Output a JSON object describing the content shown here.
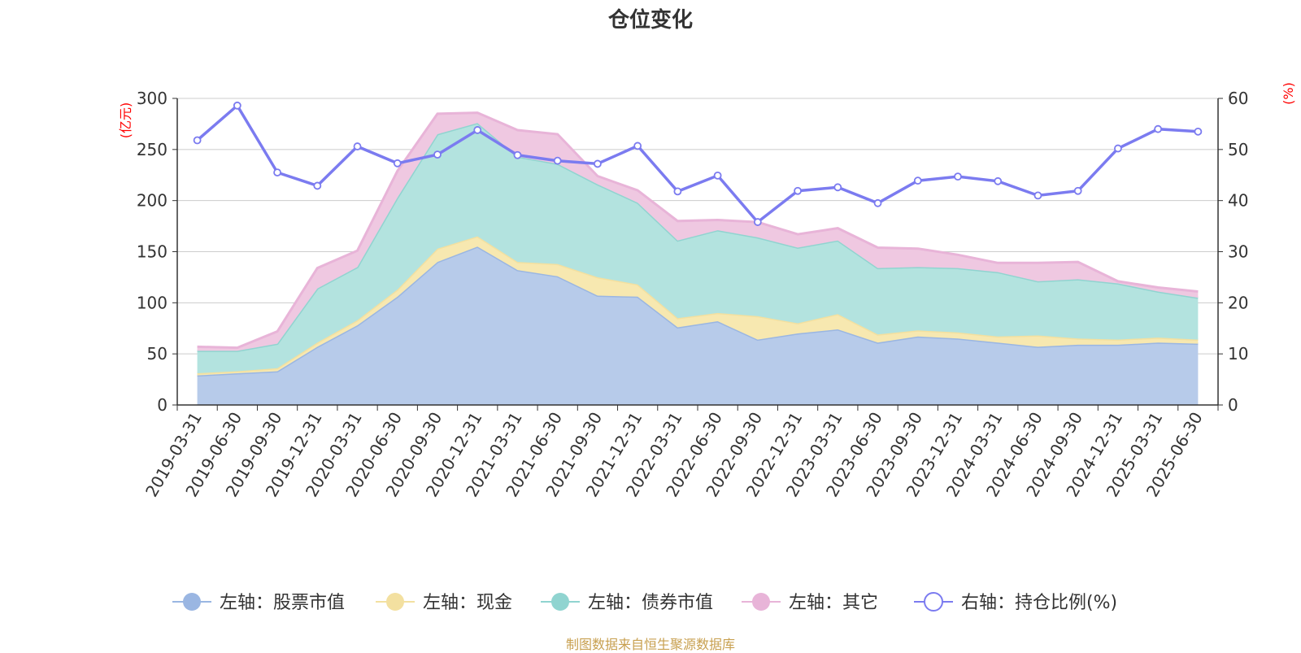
{
  "title": "仓位变化",
  "source": "制图数据来自恒生聚源数据库",
  "chart_data": {
    "type": "area",
    "stacked": true,
    "categories": [
      "2019-03-31",
      "2019-06-30",
      "2019-09-30",
      "2019-12-31",
      "2020-03-31",
      "2020-06-30",
      "2020-09-30",
      "2020-12-31",
      "2021-03-31",
      "2021-06-30",
      "2021-09-30",
      "2021-12-31",
      "2022-03-31",
      "2022-06-30",
      "2022-09-30",
      "2022-12-31",
      "2023-03-31",
      "2023-06-30",
      "2023-09-30",
      "2023-12-31",
      "2024-03-31",
      "2024-06-30",
      "2024-09-30",
      "2024-12-31",
      "2025-03-31",
      "2025-06-30"
    ],
    "y_left": {
      "label": "(亿元)",
      "min": 0,
      "max": 300,
      "ticks": [
        0,
        50,
        100,
        150,
        200,
        250,
        300
      ]
    },
    "y_right": {
      "label": "(%)",
      "min": 0,
      "max": 60,
      "ticks": [
        0,
        10,
        20,
        30,
        40,
        50,
        60
      ]
    },
    "grid": true,
    "legend_position": "bottom",
    "series": [
      {
        "name": "左轴：股票市值",
        "axis": "left",
        "color": "#9ab6e2",
        "fill": "#b7cbea",
        "values": [
          29,
          31,
          33,
          57,
          78,
          106,
          140,
          155,
          132,
          126,
          107,
          106,
          76,
          82,
          64,
          70,
          74,
          61,
          67,
          65,
          61,
          57,
          59,
          59,
          61,
          60
        ]
      },
      {
        "name": "左轴：现金",
        "axis": "left",
        "color": "#f3e0a0",
        "fill": "#f7e8b0",
        "values": [
          2,
          2,
          3,
          4,
          5,
          7,
          13,
          10,
          8,
          12,
          18,
          12,
          9,
          8,
          23,
          10,
          15,
          8,
          6,
          6,
          6,
          11,
          6,
          5,
          5,
          4
        ]
      },
      {
        "name": "左轴：债券市值",
        "axis": "left",
        "color": "#90d4d0",
        "fill": "#b3e3df",
        "values": [
          22,
          20,
          24,
          53,
          52,
          90,
          112,
          111,
          103,
          98,
          91,
          80,
          76,
          81,
          77,
          74,
          72,
          65,
          62,
          63,
          63,
          53,
          58,
          55,
          45,
          41
        ]
      },
      {
        "name": "左轴：其它",
        "axis": "left",
        "color": "#e8b4d8",
        "fill": "#efc8e1",
        "values": [
          4,
          3,
          12,
          20,
          16,
          26,
          20,
          10,
          26,
          29,
          8,
          12,
          19,
          10,
          15,
          13,
          12,
          20,
          18,
          13,
          9,
          18,
          17,
          2,
          4,
          6
        ]
      },
      {
        "name": "右轴：持仓比例(%)",
        "axis": "right",
        "type": "line",
        "color": "#7b7bf0",
        "values": [
          51.8,
          58.6,
          45.5,
          42.9,
          50.6,
          47.3,
          49.0,
          53.8,
          48.9,
          47.8,
          47.2,
          50.7,
          41.8,
          44.9,
          35.8,
          41.9,
          42.6,
          39.5,
          43.9,
          44.7,
          43.8,
          41.0,
          41.9,
          50.2,
          54.0,
          53.5
        ]
      }
    ]
  }
}
